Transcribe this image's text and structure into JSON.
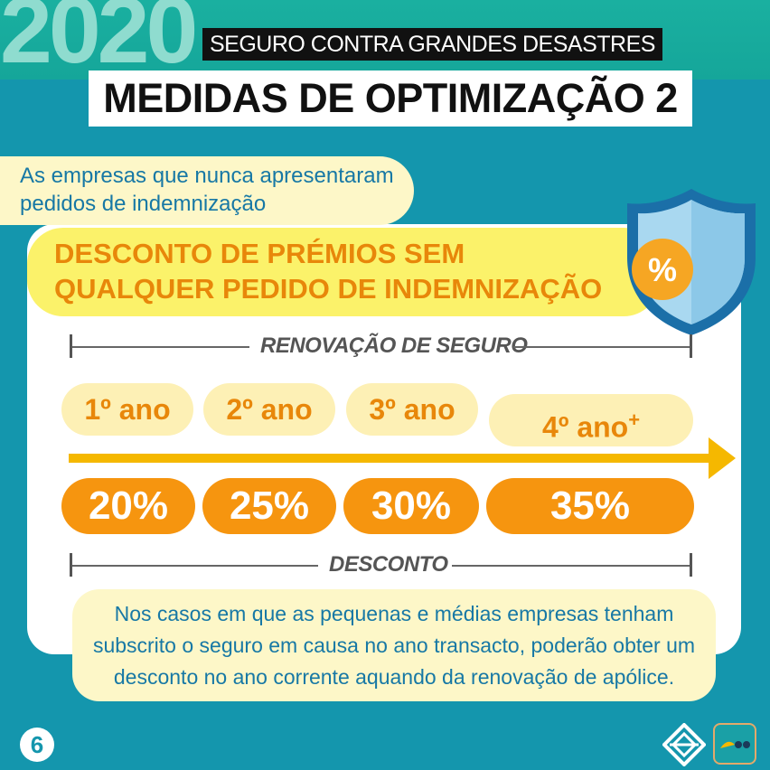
{
  "header": {
    "year": "2020",
    "subtitle": "SEGURO CONTRA GRANDES DESASTRES",
    "title": "MEDIDAS DE OPTIMIZAÇÃO 2"
  },
  "intro": {
    "line1": "As empresas que nunca apresentaram",
    "line2": "pedidos de indemnização"
  },
  "headline": {
    "line1": "DESCONTO DE PRÉMIOS SEM",
    "line2": "QUALQUER PEDIDO DE INDEMNIZAÇÃO"
  },
  "shield": {
    "symbol": "%",
    "icon": "shield-percent-icon"
  },
  "renewal_label": "RENOVAÇÃO DE SEGURO",
  "years": [
    {
      "label": "1º ano",
      "suffix": ""
    },
    {
      "label": "2º ano",
      "suffix": ""
    },
    {
      "label": "3º ano",
      "suffix": ""
    },
    {
      "label": "4º ano",
      "suffix": "+"
    }
  ],
  "discounts": [
    "20%",
    "25%",
    "30%",
    "35%"
  ],
  "discount_label": "DESCONTO",
  "note": {
    "line1": "Nos casos em que as pequenas e médias empresas tenham",
    "line2": "subscrito o seguro em causa no ano transacto, poderão obter um",
    "line3": "desconto no ano corrente aquando da renovação de apólice."
  },
  "footer": {
    "page_number": "6",
    "logo1_icon": "diamond-logo-icon",
    "logo2_icon": "badge-logo-icon"
  },
  "colors": {
    "background": "#1496ad",
    "band": "#15a69a",
    "accent_orange": "#f6950f",
    "accent_yellow": "#fbf26a",
    "text_blue": "#1778a5"
  }
}
